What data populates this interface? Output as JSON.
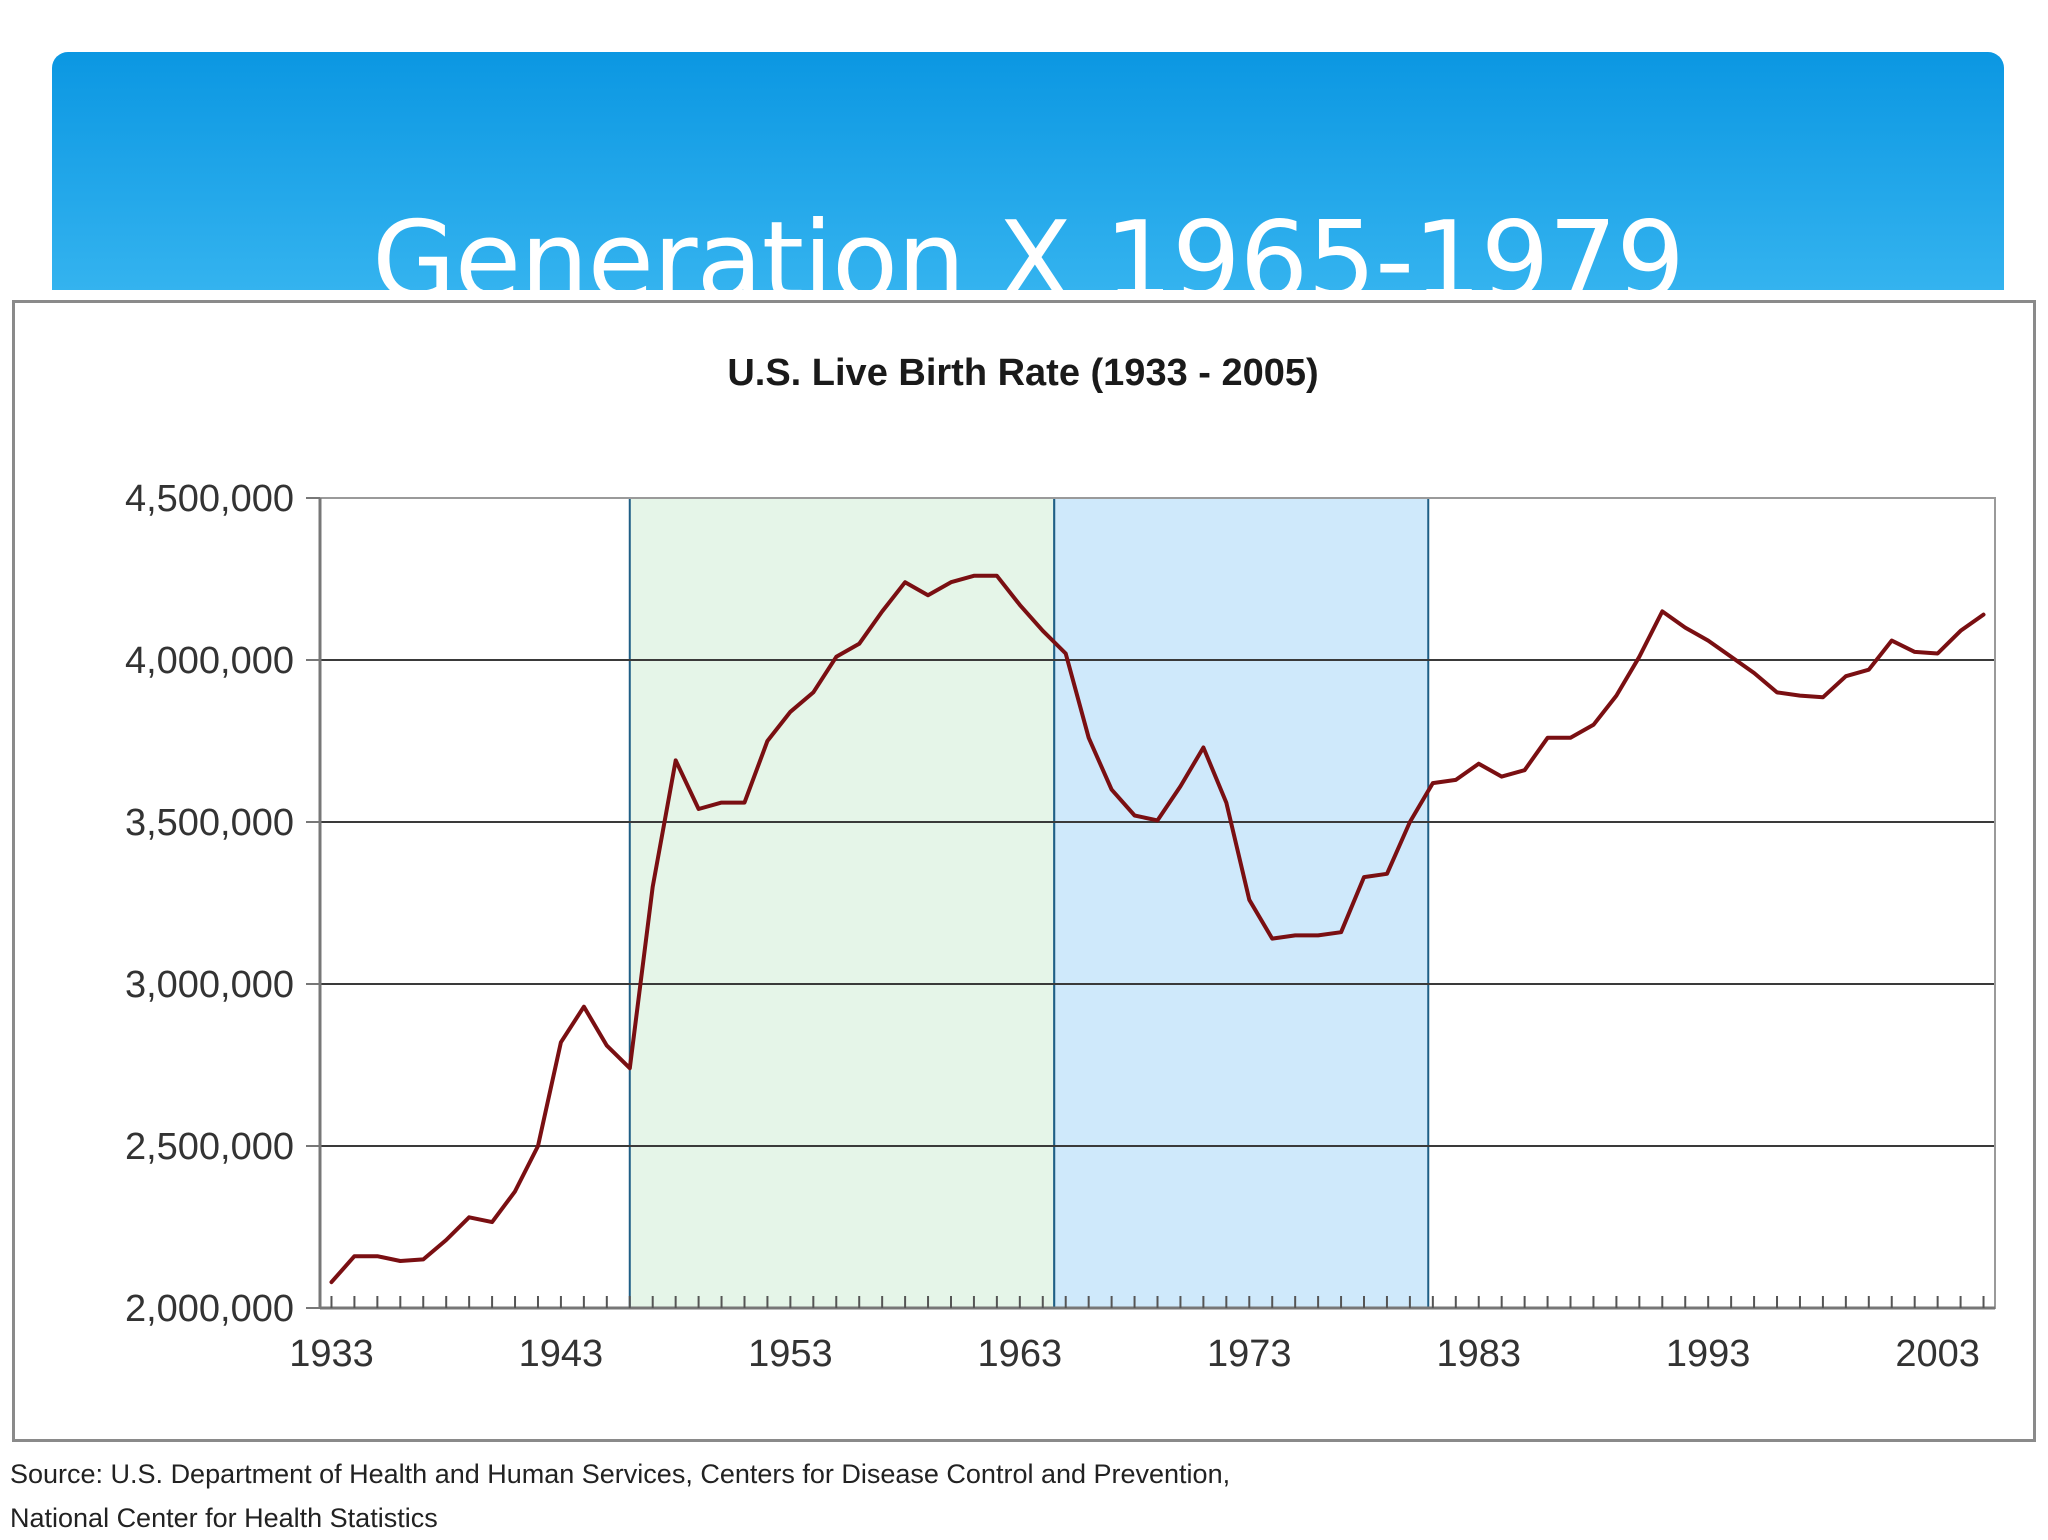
{
  "slide": {
    "title": "Generation X 1965-1979",
    "banner_colors": [
      "#0b97e2",
      "#34b3ef"
    ]
  },
  "source": {
    "line1": "Source: U.S. Department of Health and Human Services, Centers for Disease Control and Prevention,",
    "line2": "National Center for Health Statistics"
  },
  "chart_data": {
    "type": "line",
    "title": "U.S. Live Birth Rate (1933 - 2005)",
    "xlabel": "",
    "ylabel": "",
    "xlim": [
      1932.5,
      2005.5
    ],
    "ylim": [
      2000000,
      4500000
    ],
    "xticks": [
      "1933",
      "1943",
      "1953",
      "1963",
      "1973",
      "1983",
      "1993",
      "2003"
    ],
    "xtick_values": [
      1933,
      1943,
      1953,
      1963,
      1973,
      1983,
      1993,
      2003
    ],
    "yticks": [
      "2,000,000",
      "2,500,000",
      "3,000,000",
      "3,500,000",
      "4,000,000",
      "4,500,000"
    ],
    "ytick_values": [
      2000000,
      2500000,
      3000000,
      3500000,
      4000000,
      4500000
    ],
    "grid": true,
    "line_color": "#7a0f12",
    "shaded_regions": [
      {
        "start": 1946,
        "end": 1964.5,
        "color": "#e5f5e8"
      },
      {
        "start": 1964.5,
        "end": 1980.8,
        "color": "#cfe9fb"
      }
    ],
    "x": [
      1933,
      1934,
      1935,
      1936,
      1937,
      1938,
      1939,
      1940,
      1941,
      1942,
      1943,
      1944,
      1945,
      1946,
      1947,
      1948,
      1949,
      1950,
      1951,
      1952,
      1953,
      1954,
      1955,
      1956,
      1957,
      1958,
      1959,
      1960,
      1961,
      1962,
      1963,
      1964,
      1965,
      1966,
      1967,
      1968,
      1969,
      1970,
      1971,
      1972,
      1973,
      1974,
      1975,
      1976,
      1977,
      1978,
      1979,
      1980,
      1981,
      1982,
      1983,
      1984,
      1985,
      1986,
      1987,
      1988,
      1989,
      1990,
      1991,
      1992,
      1993,
      1994,
      1995,
      1996,
      1997,
      1998,
      1999,
      2000,
      2001,
      2002,
      2003,
      2004,
      2005
    ],
    "values": [
      2080000,
      2160000,
      2160000,
      2145000,
      2150000,
      2210000,
      2280000,
      2265000,
      2360000,
      2500000,
      2820000,
      2930000,
      2810000,
      2740000,
      3300000,
      3690000,
      3540000,
      3560000,
      3560000,
      3750000,
      3840000,
      3900000,
      4010000,
      4050000,
      4150000,
      4240000,
      4200000,
      4240000,
      4260000,
      4260000,
      4170000,
      4090000,
      4020000,
      3760000,
      3600000,
      3520000,
      3505000,
      3610000,
      3730000,
      3560000,
      3260000,
      3140000,
      3150000,
      3150000,
      3160000,
      3330000,
      3340000,
      3500000,
      3620000,
      3630000,
      3680000,
      3640000,
      3660000,
      3760000,
      3760000,
      3800000,
      3890000,
      4010000,
      4150000,
      4100000,
      4060000,
      4010000,
      3960000,
      3900000,
      3890000,
      3885000,
      3950000,
      3970000,
      4060000,
      4025000,
      4020000,
      4090000,
      4140000
    ]
  }
}
